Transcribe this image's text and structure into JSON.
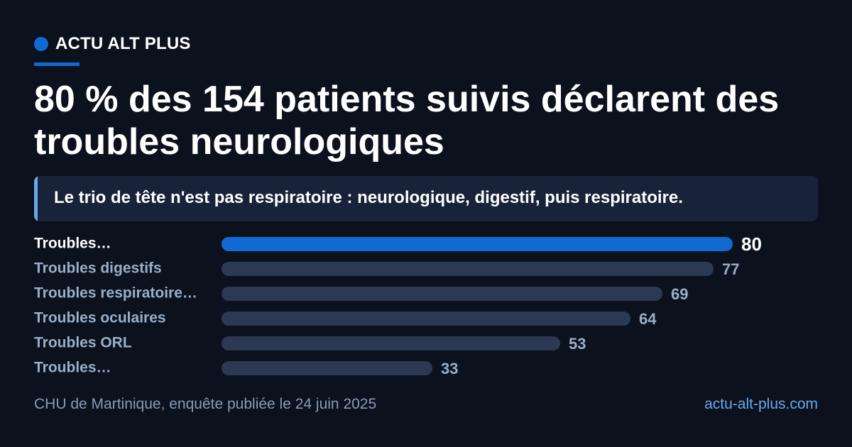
{
  "brand": {
    "name": "ACTU ALT PLUS",
    "color": "#0f6bd1"
  },
  "headline": "80 % des 154 patients suivis déclarent des troubles neurologiques",
  "callout": "Le trio de tête n'est pas respiratoire : neurologique, digestif, puis respiratoire.",
  "footer": {
    "source": "CHU de Martinique, enquête publiée le 24 juin 2025",
    "site": "actu-alt-plus.com"
  },
  "colors": {
    "background": "#0b111d",
    "highlight_bar": "#0f6bd1",
    "other_bar": "#2b3953",
    "highlight_label": "#ffffff",
    "other_label": "#9aaec8"
  },
  "chart_data": {
    "type": "bar",
    "orientation": "horizontal",
    "categories": [
      "Troubles…",
      "Troubles digestifs",
      "Troubles respiratoire…",
      "Troubles oculaires",
      "Troubles ORL",
      "Troubles…"
    ],
    "values": [
      80,
      77,
      69,
      64,
      53,
      33
    ],
    "value_labels": [
      "80",
      "77",
      "69",
      "64",
      "53",
      "33"
    ],
    "highlighted_index": 0,
    "xlim": [
      0,
      80
    ],
    "grid": false,
    "title": "",
    "xlabel": "",
    "ylabel": ""
  }
}
